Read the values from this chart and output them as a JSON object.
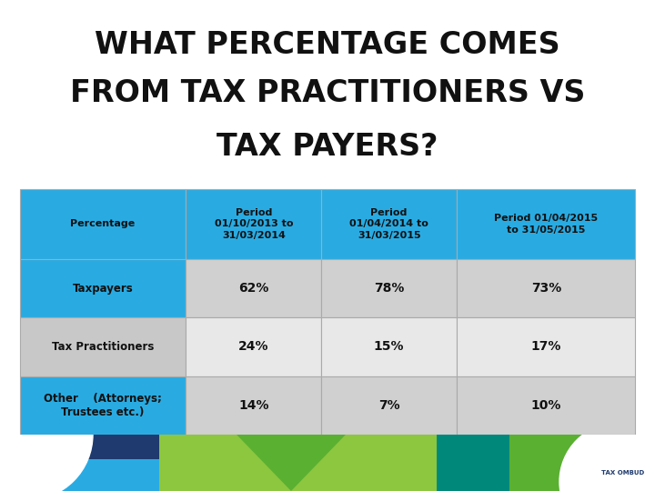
{
  "title_lines": [
    "WHAT PERCENTAGE COMES",
    "FROM TAX PRACTITIONERS VS",
    "TAX PAYERS?"
  ],
  "title_bg_color": "#8dc63f",
  "title_text_color": "#111111",
  "title_fontsize": 24,
  "table_header_bg": "#29abe2",
  "table_border_color": "#aaaaaa",
  "col_headers": [
    "Percentage",
    "Period\n01/10/2013 to\n31/03/2014",
    "Period\n01/04/2014 to\n31/03/2015",
    "Period 01/04/2015\nto 31/05/2015"
  ],
  "row_labels": [
    "Taxpayers",
    "Tax Practitioners",
    "Other    (Attorneys;\nTrustees etc.)"
  ],
  "row_label_bg": [
    "#29abe2",
    "#c8c8c8",
    "#29abe2"
  ],
  "data": [
    [
      "62%",
      "78%",
      "73%"
    ],
    [
      "24%",
      "15%",
      "17%"
    ],
    [
      "14%",
      "7%",
      "10%"
    ]
  ],
  "data_bg": [
    "#d0d0d0",
    "#e8e8e8",
    "#d0d0d0"
  ],
  "outer_bg": "#ffffff",
  "footer_bg": "#8dc63f",
  "footer_white_circle_color": "#ffffff",
  "footer_blue_color": "#29abe2",
  "footer_dark_blue": "#1e3a6e",
  "footer_green2": "#5ab031",
  "footer_teal": "#00a890"
}
